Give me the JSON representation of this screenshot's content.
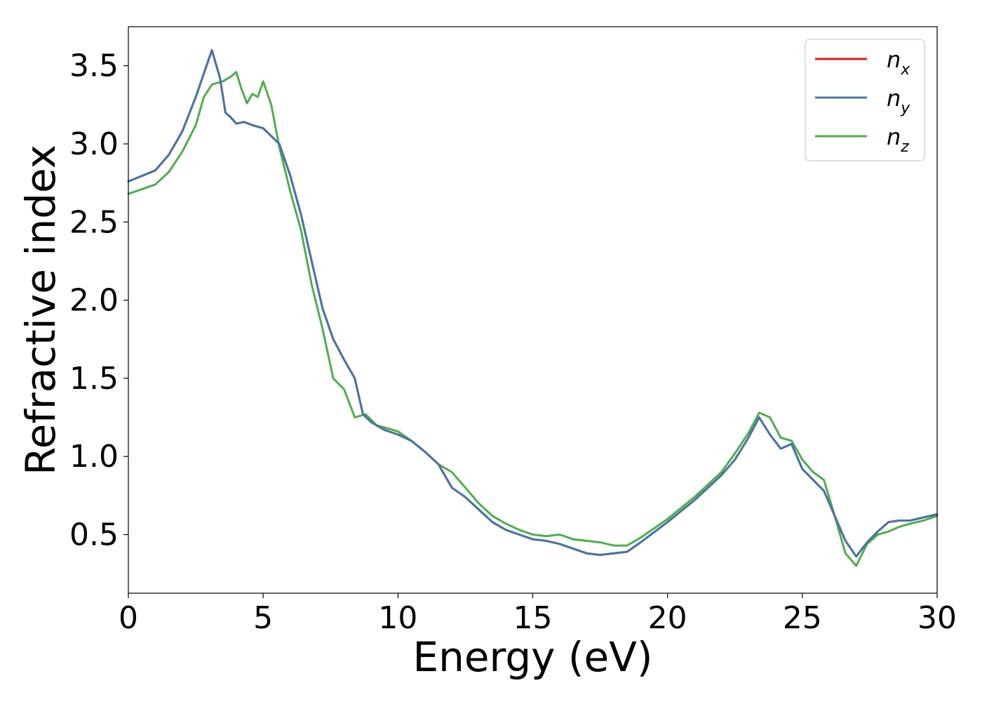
{
  "chart_data": {
    "type": "line",
    "title": "",
    "xlabel": "Energy (eV)",
    "ylabel": "Refractive index",
    "xlim": [
      0,
      30
    ],
    "ylim": [
      0.125,
      3.75
    ],
    "xticks": [
      0,
      5,
      10,
      15,
      20,
      25,
      30
    ],
    "xtick_labels": [
      "0",
      "5",
      "10",
      "15",
      "20",
      "25",
      "30"
    ],
    "yticks": [
      0.5,
      1.0,
      1.5,
      2.0,
      2.5,
      3.0,
      3.5
    ],
    "ytick_labels": [
      "0.5",
      "1.0",
      "1.5",
      "2.0",
      "2.5",
      "3.0",
      "3.5"
    ],
    "grid": false,
    "legend_position": "top-right",
    "series": [
      {
        "name": "n",
        "subscript": "x",
        "color": "#e41a1c",
        "x": [
          0,
          1,
          1.5,
          2,
          2.5,
          2.8,
          3.1,
          3.4,
          3.6,
          3.8,
          4.0,
          4.3,
          4.6,
          5.0,
          5.3,
          5.6,
          6.0,
          6.4,
          6.8,
          7.2,
          7.6,
          8.0,
          8.4,
          8.7,
          9.0,
          9.5,
          10,
          10.5,
          11,
          11.5,
          12,
          12.5,
          13,
          13.5,
          14,
          14.5,
          15,
          15.5,
          16,
          16.5,
          17,
          17.5,
          18,
          18.5,
          19,
          20,
          21,
          22,
          22.5,
          23,
          23.4,
          23.8,
          24.2,
          24.6,
          25,
          25.4,
          25.8,
          26.2,
          26.6,
          27.0,
          27.4,
          27.8,
          28.2,
          28.6,
          29,
          29.5,
          30
        ],
        "y": [
          2.76,
          2.83,
          2.93,
          3.08,
          3.3,
          3.45,
          3.6,
          3.42,
          3.2,
          3.17,
          3.13,
          3.14,
          3.12,
          3.1,
          3.05,
          3.0,
          2.8,
          2.55,
          2.25,
          1.95,
          1.75,
          1.62,
          1.5,
          1.27,
          1.22,
          1.17,
          1.14,
          1.1,
          1.03,
          0.95,
          0.8,
          0.74,
          0.66,
          0.58,
          0.53,
          0.5,
          0.47,
          0.46,
          0.44,
          0.41,
          0.38,
          0.37,
          0.38,
          0.39,
          0.45,
          0.58,
          0.72,
          0.88,
          0.98,
          1.12,
          1.25,
          1.14,
          1.05,
          1.08,
          0.92,
          0.85,
          0.78,
          0.62,
          0.46,
          0.36,
          0.45,
          0.52,
          0.58,
          0.59,
          0.59,
          0.61,
          0.63
        ]
      },
      {
        "name": "n",
        "subscript": "y",
        "color": "#4477aa",
        "x": [
          0,
          1,
          1.5,
          2,
          2.5,
          2.8,
          3.1,
          3.4,
          3.6,
          3.8,
          4.0,
          4.3,
          4.6,
          5.0,
          5.3,
          5.6,
          6.0,
          6.4,
          6.8,
          7.2,
          7.6,
          8.0,
          8.4,
          8.7,
          9.0,
          9.5,
          10,
          10.5,
          11,
          11.5,
          12,
          12.5,
          13,
          13.5,
          14,
          14.5,
          15,
          15.5,
          16,
          16.5,
          17,
          17.5,
          18,
          18.5,
          19,
          20,
          21,
          22,
          22.5,
          23,
          23.4,
          23.8,
          24.2,
          24.6,
          25,
          25.4,
          25.8,
          26.2,
          26.6,
          27.0,
          27.4,
          27.8,
          28.2,
          28.6,
          29,
          29.5,
          30
        ],
        "y": [
          2.76,
          2.83,
          2.93,
          3.08,
          3.3,
          3.45,
          3.6,
          3.42,
          3.2,
          3.17,
          3.13,
          3.14,
          3.12,
          3.1,
          3.05,
          3.0,
          2.8,
          2.55,
          2.25,
          1.95,
          1.75,
          1.62,
          1.5,
          1.27,
          1.22,
          1.17,
          1.14,
          1.1,
          1.03,
          0.95,
          0.8,
          0.74,
          0.66,
          0.58,
          0.53,
          0.5,
          0.47,
          0.46,
          0.44,
          0.41,
          0.38,
          0.37,
          0.38,
          0.39,
          0.45,
          0.58,
          0.72,
          0.88,
          0.98,
          1.12,
          1.25,
          1.14,
          1.05,
          1.08,
          0.92,
          0.85,
          0.78,
          0.62,
          0.46,
          0.36,
          0.45,
          0.52,
          0.58,
          0.59,
          0.59,
          0.61,
          0.63
        ]
      },
      {
        "name": "n",
        "subscript": "z",
        "color": "#4daf4a",
        "x": [
          0,
          1,
          1.5,
          2,
          2.5,
          2.8,
          3.1,
          3.5,
          3.8,
          4.0,
          4.2,
          4.4,
          4.6,
          4.8,
          5.0,
          5.3,
          5.6,
          6.0,
          6.4,
          6.8,
          7.2,
          7.6,
          8.0,
          8.4,
          8.8,
          9.2,
          9.6,
          10,
          10.5,
          11,
          11.5,
          12,
          12.5,
          13,
          13.5,
          14,
          14.5,
          15,
          15.5,
          16,
          16.5,
          17,
          17.5,
          18,
          18.5,
          19,
          20,
          21,
          22,
          22.5,
          23,
          23.4,
          23.8,
          24.2,
          24.6,
          25,
          25.4,
          25.8,
          26.2,
          26.6,
          27.0,
          27.4,
          27.8,
          28.2,
          28.6,
          29,
          29.5,
          30
        ],
        "y": [
          2.68,
          2.74,
          2.82,
          2.95,
          3.12,
          3.3,
          3.38,
          3.4,
          3.43,
          3.46,
          3.35,
          3.26,
          3.32,
          3.3,
          3.4,
          3.25,
          2.98,
          2.7,
          2.45,
          2.1,
          1.82,
          1.5,
          1.43,
          1.25,
          1.27,
          1.2,
          1.18,
          1.16,
          1.1,
          1.03,
          0.95,
          0.9,
          0.8,
          0.7,
          0.62,
          0.57,
          0.53,
          0.5,
          0.49,
          0.5,
          0.47,
          0.46,
          0.45,
          0.43,
          0.43,
          0.48,
          0.6,
          0.74,
          0.9,
          1.02,
          1.15,
          1.28,
          1.25,
          1.12,
          1.1,
          0.98,
          0.9,
          0.85,
          0.62,
          0.38,
          0.3,
          0.44,
          0.5,
          0.52,
          0.55,
          0.57,
          0.59,
          0.62
        ]
      }
    ]
  }
}
